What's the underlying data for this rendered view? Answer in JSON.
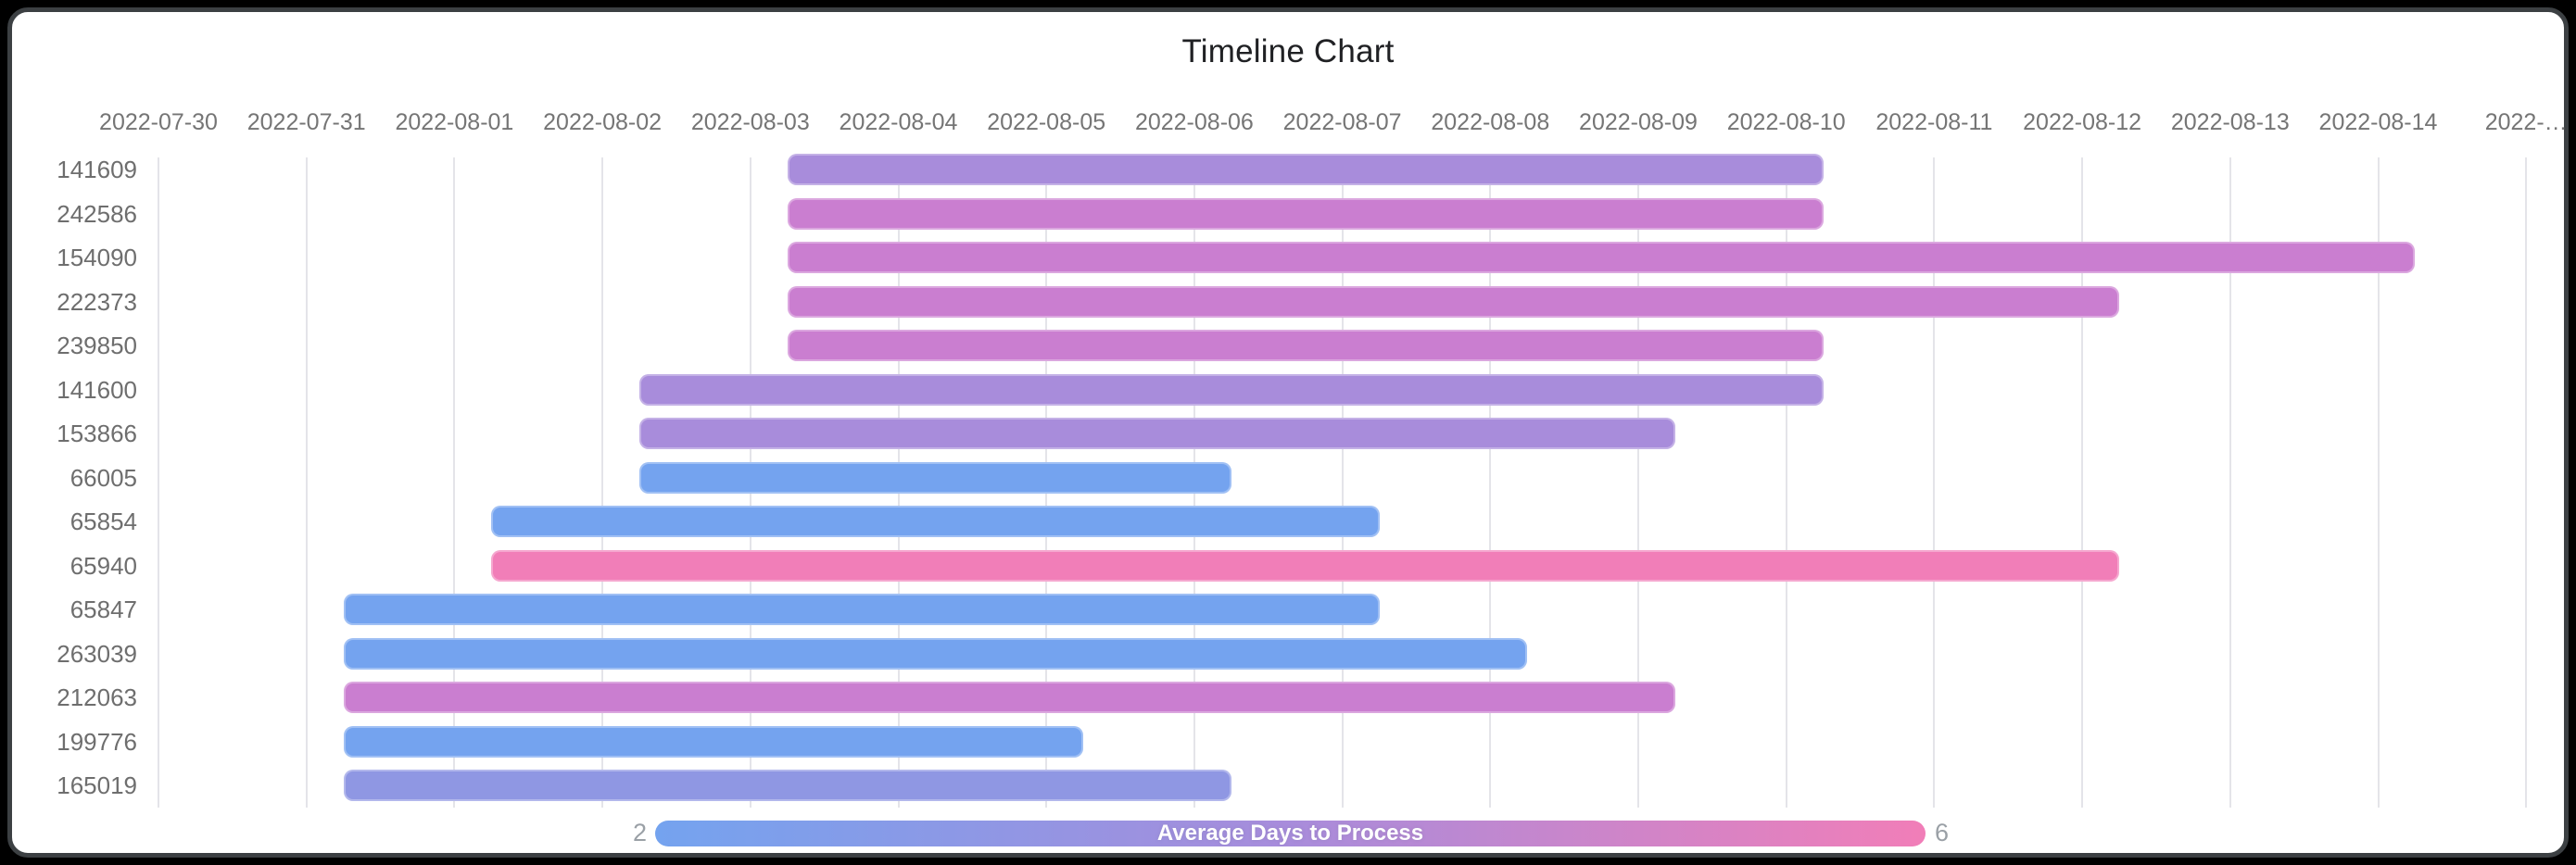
{
  "title": "Timeline Chart",
  "legend": {
    "title": "Average Days to Process",
    "min_label": "2",
    "max_label": "6",
    "gradient": [
      "#74a3ef",
      "#a88cdb",
      "#f17eb8"
    ]
  },
  "colors": {
    "background": "#000000",
    "card": "#ffffff",
    "card_border": "#3c4043",
    "gridline": "#e4e4e9",
    "axis_text": "#757575",
    "title_text": "#202124",
    "bar_blue": "#74a3ef",
    "bar_periwinkle": "#8f97e3",
    "bar_purple": "#a88cdb",
    "bar_orchid": "#ca7ed0",
    "bar_pink": "#f17eb8"
  },
  "chart_data": {
    "type": "bar",
    "subtype": "horizontal-timeline-gantt",
    "title": "Timeline Chart",
    "x_axis_start": "2022-07-30",
    "x_ticks": [
      "2022-07-30",
      "2022-07-31",
      "2022-08-01",
      "2022-08-02",
      "2022-08-03",
      "2022-08-04",
      "2022-08-05",
      "2022-08-06",
      "2022-08-07",
      "2022-08-08",
      "2022-08-09",
      "2022-08-10",
      "2022-08-11",
      "2022-08-12",
      "2022-08-13",
      "2022-08-14",
      "2022-…"
    ],
    "grid": true,
    "legend_position": "bottom",
    "color_scale": {
      "label": "Average Days to Process",
      "min": 2,
      "max": 6,
      "colors": [
        "#74a3ef",
        "#a88cdb",
        "#f17eb8"
      ]
    },
    "rows": [
      {
        "id": "141609",
        "start_date": "2022-08-03",
        "end_date": "2022-08-10",
        "start_day_offset": 4.25,
        "end_day_offset": 11.25,
        "duration_days": 7,
        "color": "#a88cdb"
      },
      {
        "id": "242586",
        "start_date": "2022-08-03",
        "end_date": "2022-08-10",
        "start_day_offset": 4.25,
        "end_day_offset": 11.25,
        "duration_days": 7,
        "color": "#ca7ed0"
      },
      {
        "id": "154090",
        "start_date": "2022-08-03",
        "end_date": "2022-08-14",
        "start_day_offset": 4.25,
        "end_day_offset": 15.25,
        "duration_days": 11,
        "color": "#ca7ed0"
      },
      {
        "id": "222373",
        "start_date": "2022-08-03",
        "end_date": "2022-08-12",
        "start_day_offset": 4.25,
        "end_day_offset": 13.25,
        "duration_days": 9,
        "color": "#ca7ed0"
      },
      {
        "id": "239850",
        "start_date": "2022-08-03",
        "end_date": "2022-08-10",
        "start_day_offset": 4.25,
        "end_day_offset": 11.25,
        "duration_days": 7,
        "color": "#ca7ed0"
      },
      {
        "id": "141600",
        "start_date": "2022-08-02",
        "end_date": "2022-08-10",
        "start_day_offset": 3.25,
        "end_day_offset": 11.25,
        "duration_days": 8,
        "color": "#a88cdb"
      },
      {
        "id": "153866",
        "start_date": "2022-08-02",
        "end_date": "2022-08-09",
        "start_day_offset": 3.25,
        "end_day_offset": 10.25,
        "duration_days": 7,
        "color": "#a88cdb"
      },
      {
        "id": "66005",
        "start_date": "2022-08-02",
        "end_date": "2022-08-06",
        "start_day_offset": 3.25,
        "end_day_offset": 7.25,
        "duration_days": 4,
        "color": "#74a3ef"
      },
      {
        "id": "65854",
        "start_date": "2022-08-01",
        "end_date": "2022-08-07",
        "start_day_offset": 2.25,
        "end_day_offset": 8.25,
        "duration_days": 6,
        "color": "#74a3ef"
      },
      {
        "id": "65940",
        "start_date": "2022-08-01",
        "end_date": "2022-08-12",
        "start_day_offset": 2.25,
        "end_day_offset": 13.25,
        "duration_days": 11,
        "color": "#f17eb8"
      },
      {
        "id": "65847",
        "start_date": "2022-07-31",
        "end_date": "2022-08-07",
        "start_day_offset": 1.25,
        "end_day_offset": 8.25,
        "duration_days": 7,
        "color": "#74a3ef"
      },
      {
        "id": "263039",
        "start_date": "2022-07-31",
        "end_date": "2022-08-08",
        "start_day_offset": 1.25,
        "end_day_offset": 9.25,
        "duration_days": 8,
        "color": "#74a3ef"
      },
      {
        "id": "212063",
        "start_date": "2022-07-31",
        "end_date": "2022-08-09",
        "start_day_offset": 1.25,
        "end_day_offset": 10.25,
        "duration_days": 9,
        "color": "#ca7ed0"
      },
      {
        "id": "199776",
        "start_date": "2022-07-31",
        "end_date": "2022-08-05",
        "start_day_offset": 1.25,
        "end_day_offset": 6.25,
        "duration_days": 5,
        "color": "#74a3ef"
      },
      {
        "id": "165019",
        "start_date": "2022-07-31",
        "end_date": "2022-08-06",
        "start_day_offset": 1.25,
        "end_day_offset": 7.25,
        "duration_days": 6,
        "color": "#8f97e3"
      }
    ]
  }
}
